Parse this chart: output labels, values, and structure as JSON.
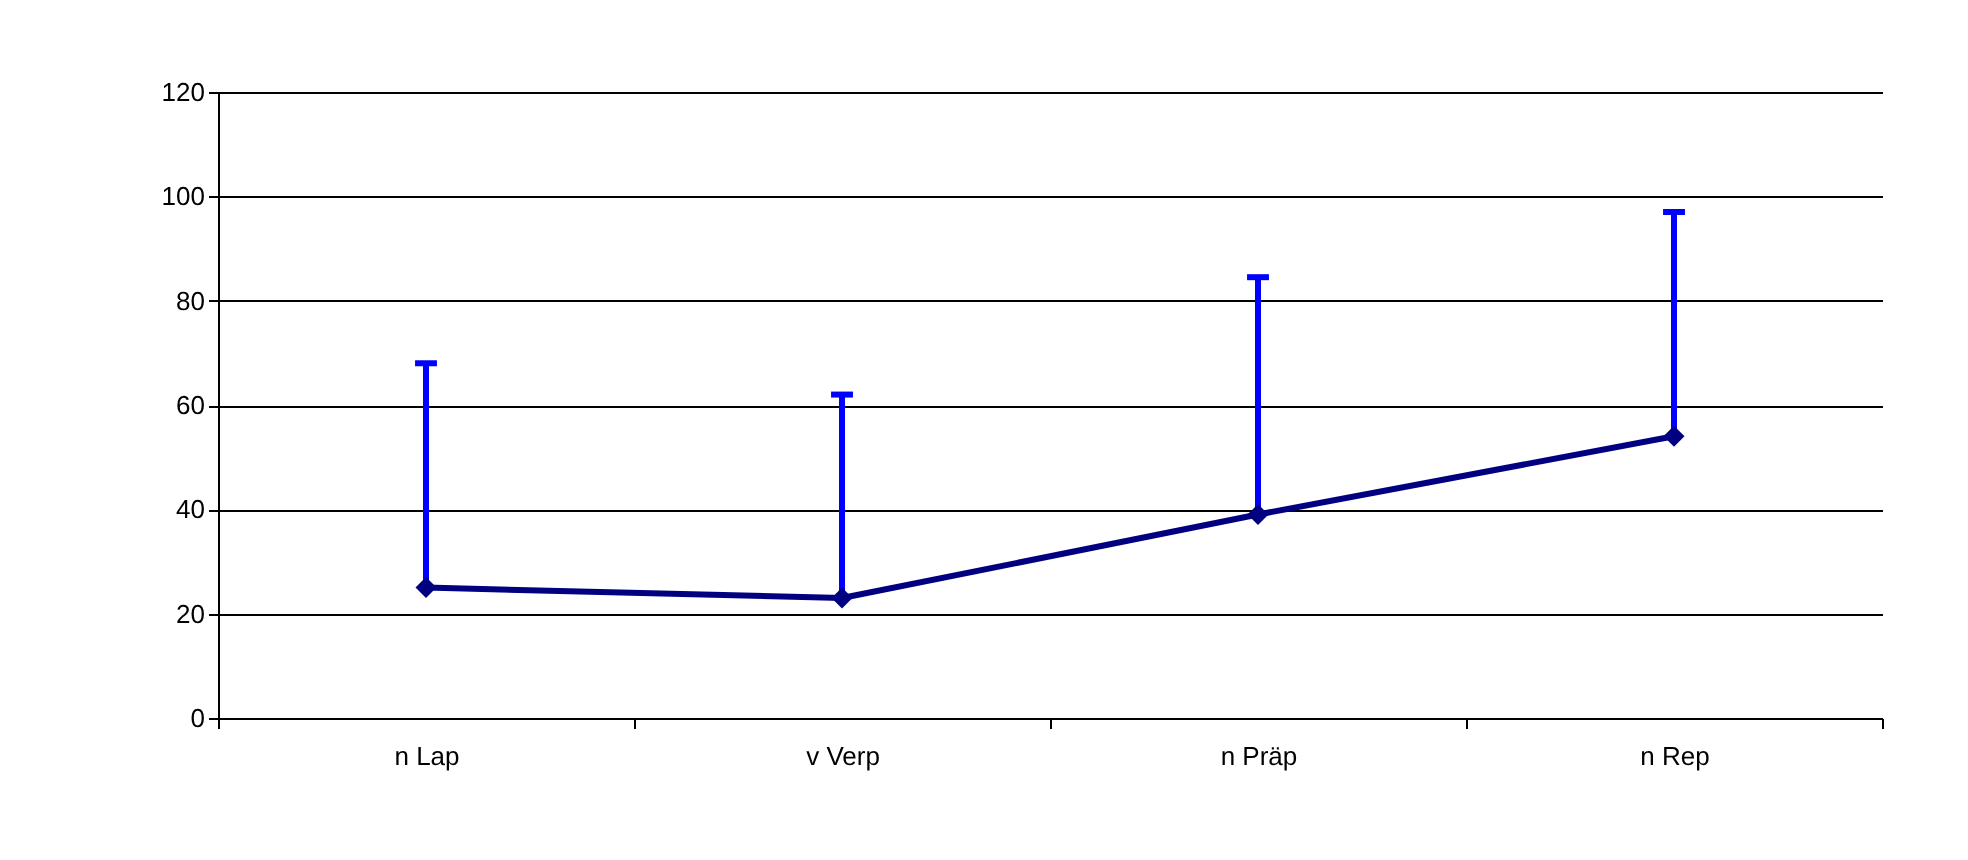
{
  "chart_data": {
    "type": "line",
    "categories": [
      "n Lap",
      "v Verp",
      "n Präp",
      "n Rep"
    ],
    "series": [
      {
        "color": "#000080",
        "values": [
          25,
          23,
          39,
          54
        ],
        "errors": [
          [
            25,
            68
          ],
          [
            23,
            62
          ],
          [
            39,
            84.5
          ],
          [
            54,
            97
          ]
        ]
      }
    ],
    "ylim": [
      0,
      120
    ],
    "yticks": [
      0,
      20,
      40,
      60,
      80,
      100,
      120
    ],
    "grid": "y",
    "marker": "diamond",
    "line_style": "solid",
    "legend": false
  }
}
